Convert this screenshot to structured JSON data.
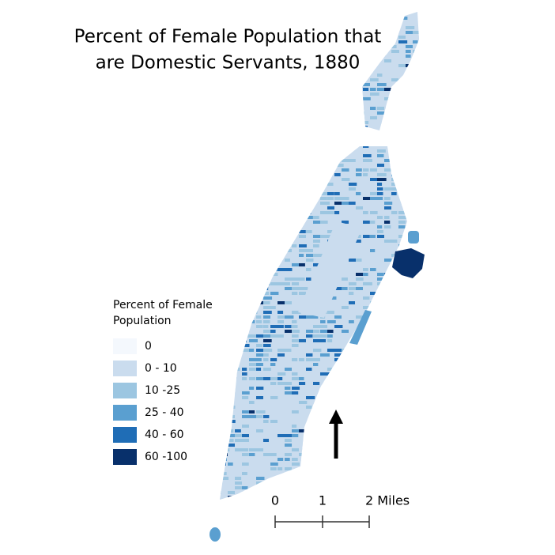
{
  "title": [
    "Percent of Female Population that",
    "are Domestic Servants, 1880"
  ],
  "legend": {
    "title": [
      "Percent of Female",
      "Population"
    ],
    "items": [
      {
        "label": "0",
        "color": "#f4f8fd"
      },
      {
        "label": "0 - 10",
        "color": "#cadcee"
      },
      {
        "label": "10 -25",
        "color": "#9cc6e1"
      },
      {
        "label": "25 - 40",
        "color": "#5a9fd0"
      },
      {
        "label": "40 - 60",
        "color": "#1f6db6"
      },
      {
        "label": "60 -100",
        "color": "#08306b"
      }
    ]
  },
  "scale_bar": {
    "labels": [
      "0",
      "1",
      "2 Miles"
    ]
  }
}
